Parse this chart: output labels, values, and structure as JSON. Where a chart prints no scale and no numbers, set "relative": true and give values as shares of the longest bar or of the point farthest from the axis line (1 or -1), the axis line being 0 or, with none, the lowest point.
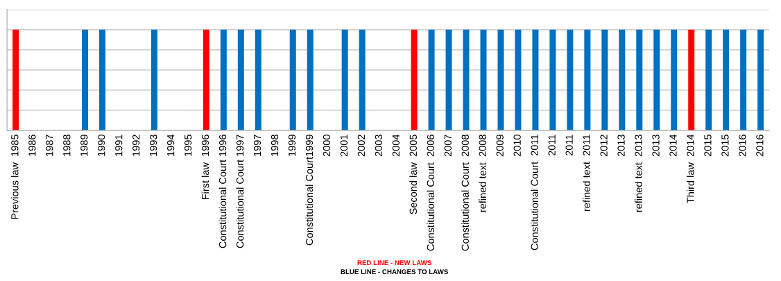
{
  "chart_data": {
    "type": "bar",
    "relative": true,
    "grid": "y",
    "tick_labels": "x",
    "categories": [
      "Previous law  1985",
      "1986",
      "1987",
      "1988",
      "1989",
      "1990",
      "1991",
      "1992",
      "1993",
      "1994",
      "1995",
      "First law  1996",
      "Constitutional Court 1996",
      "Constitutional Court 1997",
      "1997",
      "1998",
      "1999",
      "Constitutional Court1999",
      "2000",
      "2001",
      "2002",
      "2003",
      "2004",
      "Second law  2005",
      "Constitutional Court  2006",
      "2007",
      "Constitutional Court  2008",
      "refined text  2008",
      "2009",
      "2010",
      "Constitutional Court  2011",
      "2011",
      "2011",
      "refined text  2011",
      "2012",
      "2013",
      "refined text  2013",
      "2013",
      "2014",
      "Third law  2014",
      "2015",
      "2015",
      "2016",
      "2016"
    ],
    "values": [
      1,
      null,
      null,
      null,
      1,
      1,
      null,
      null,
      1,
      null,
      null,
      1,
      1,
      1,
      1,
      null,
      1,
      1,
      null,
      1,
      1,
      null,
      null,
      1,
      1,
      1,
      1,
      1,
      1,
      1,
      1,
      1,
      1,
      1,
      1,
      1,
      1,
      1,
      1,
      1,
      1,
      1,
      1,
      1
    ],
    "colors": [
      "#ff0000",
      "#0070c0",
      "#0070c0",
      "#0070c0",
      "#0070c0",
      "#0070c0",
      "#0070c0",
      "#0070c0",
      "#0070c0",
      "#0070c0",
      "#0070c0",
      "#ff0000",
      "#0070c0",
      "#0070c0",
      "#0070c0",
      "#0070c0",
      "#0070c0",
      "#0070c0",
      "#0070c0",
      "#0070c0",
      "#0070c0",
      "#0070c0",
      "#0070c0",
      "#ff0000",
      "#0070c0",
      "#0070c0",
      "#0070c0",
      "#0070c0",
      "#0070c0",
      "#0070c0",
      "#0070c0",
      "#0070c0",
      "#0070c0",
      "#0070c0",
      "#0070c0",
      "#0070c0",
      "#0070c0",
      "#0070c0",
      "#0070c0",
      "#ff0000",
      "#0070c0",
      "#0070c0",
      "#0070c0",
      "#0070c0"
    ],
    "annotations": [
      "RED LINE - NEW LAWS",
      "BLUE LINE - CHANGES TO LAWS"
    ]
  }
}
